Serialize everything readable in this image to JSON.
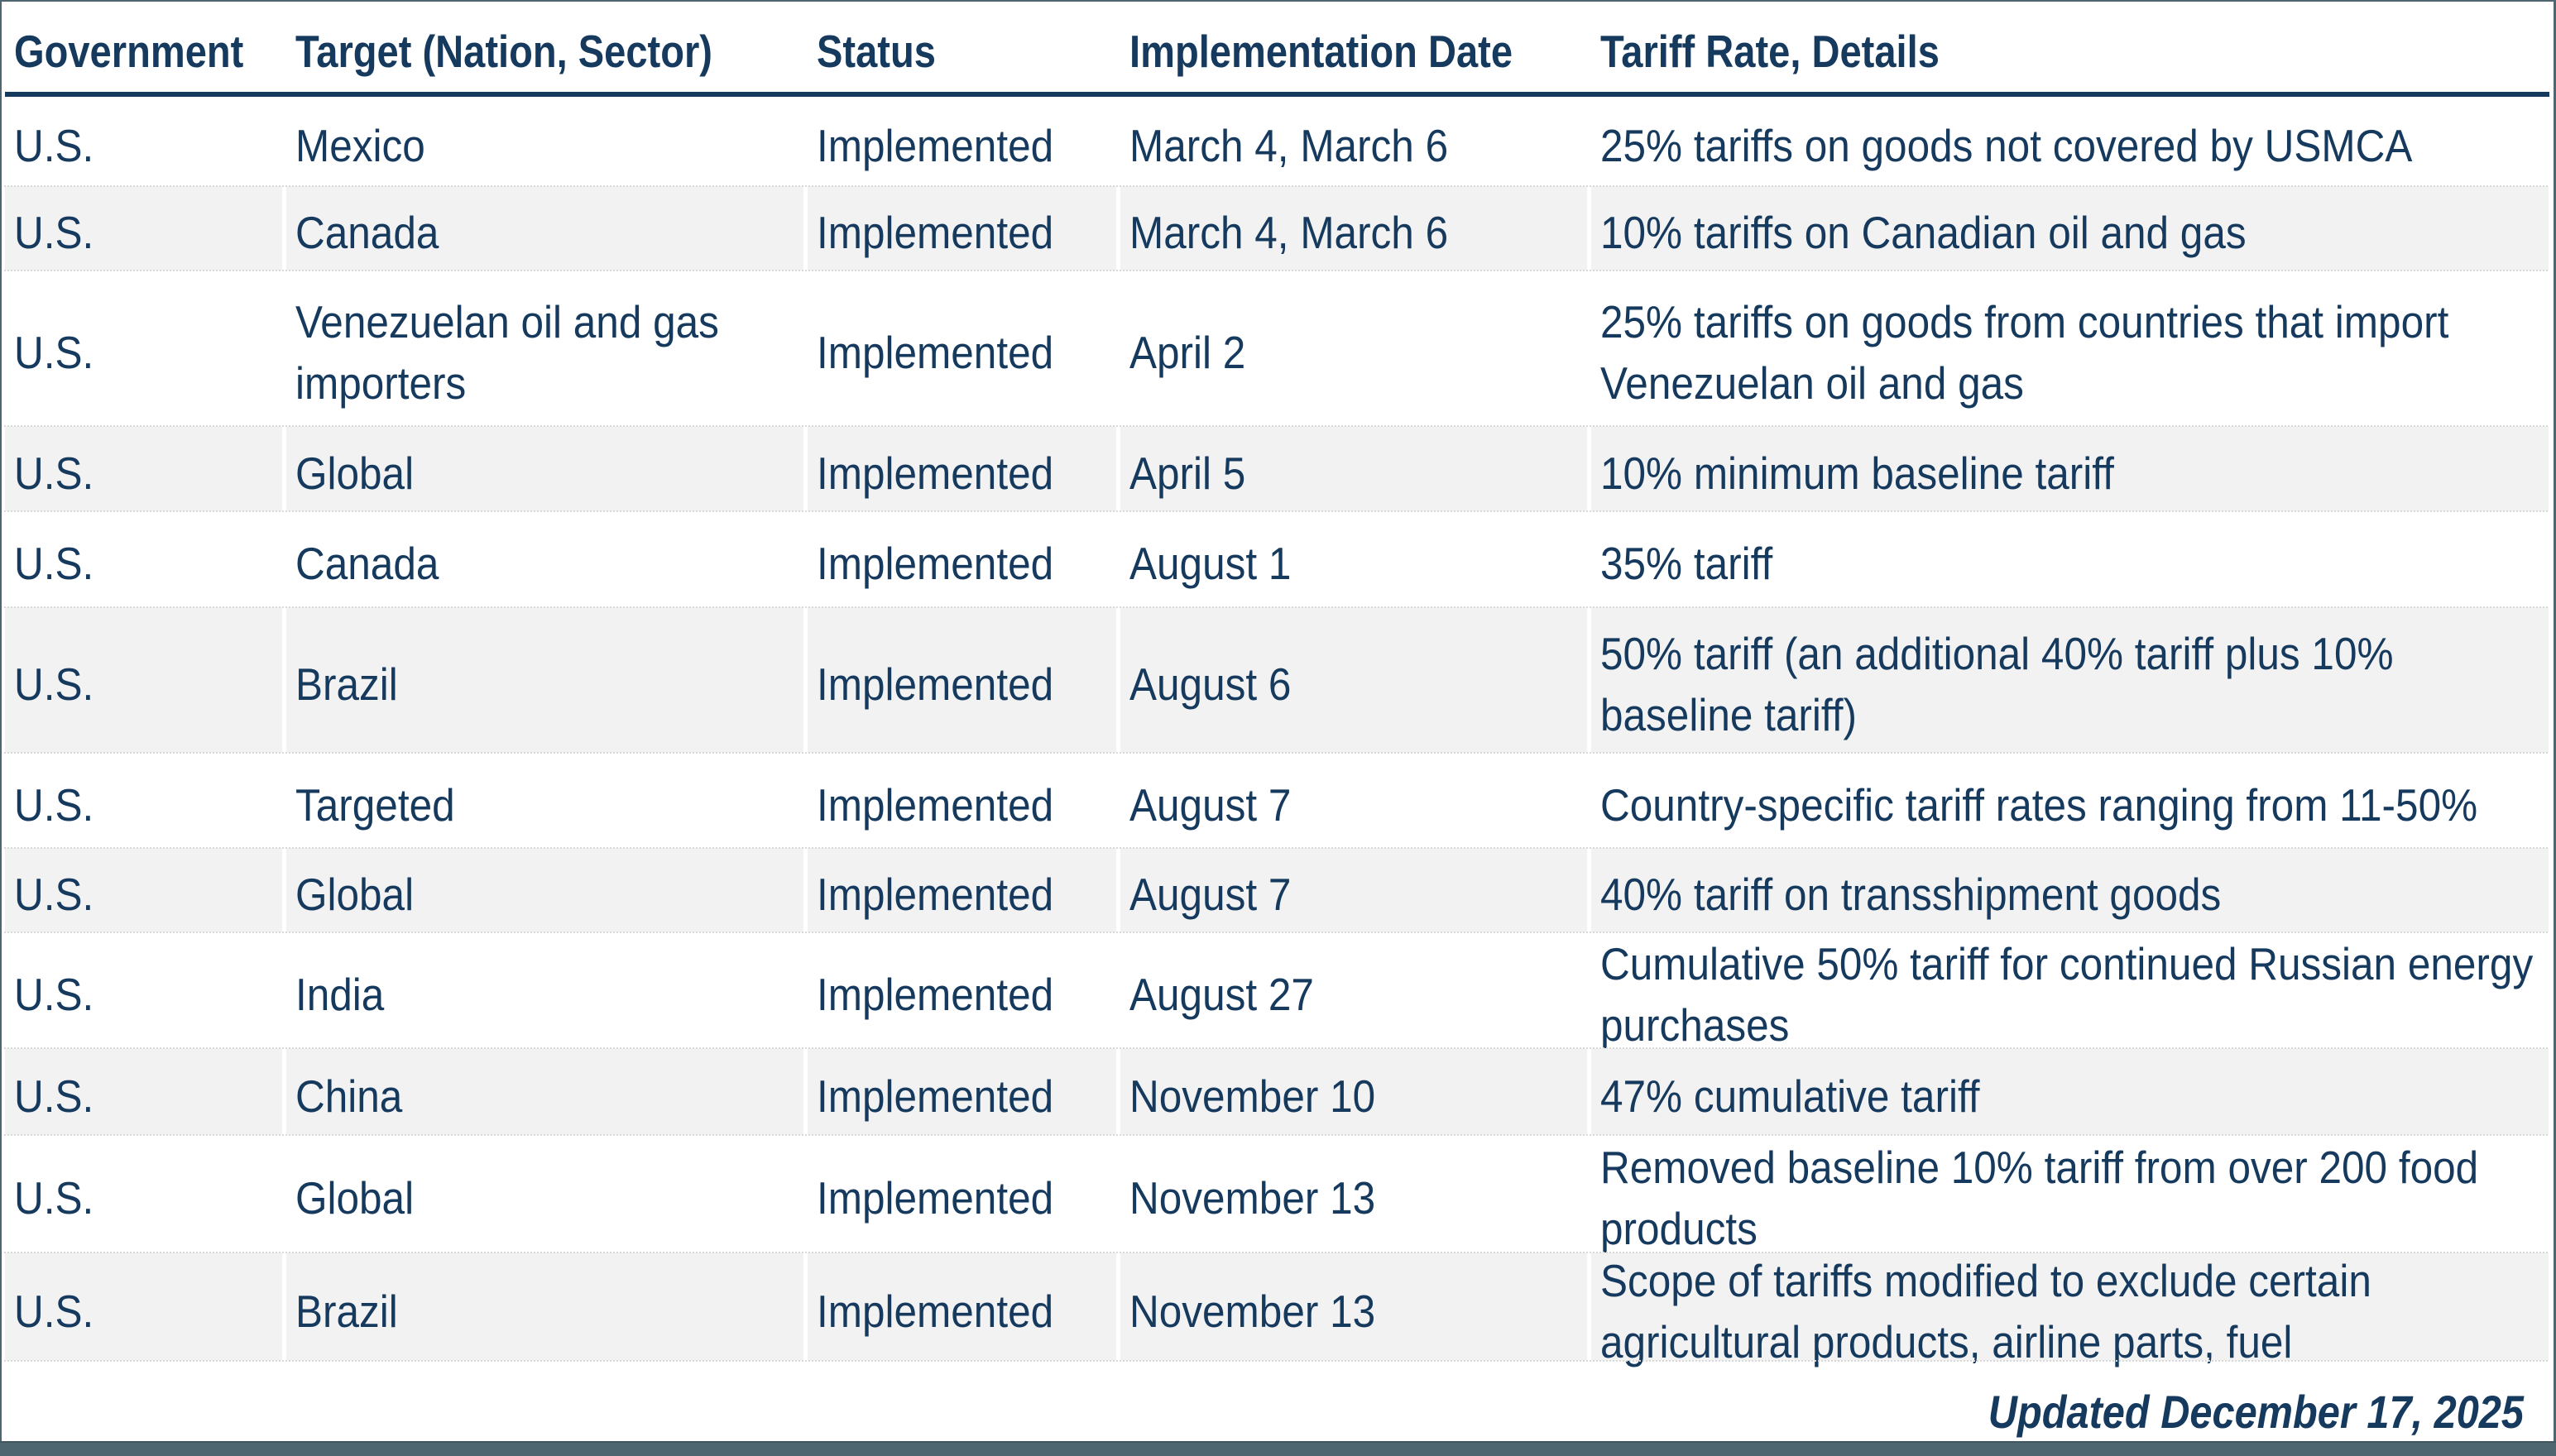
{
  "colors": {
    "navy_text": "#16395e",
    "row_stripe_gray": "#f2f2f2",
    "frame_slate": "#4d6670",
    "frame_slate_dark": "#41575f",
    "row_divider_dot": "#d9d9d9"
  },
  "table": {
    "columns": [
      "Government",
      "Target (Nation, Sector)",
      "Status",
      "Implementation Date",
      "Tariff Rate, Details"
    ],
    "rows": [
      {
        "government": "U.S.",
        "target": "Mexico",
        "status": "Implemented",
        "date": "March 4, March 6",
        "details": "25% tariffs on goods not covered by USMCA"
      },
      {
        "government": "U.S.",
        "target": "Canada",
        "status": "Implemented",
        "date": "March 4, March 6",
        "details": "10% tariffs on Canadian oil and gas"
      },
      {
        "government": "U.S.",
        "target": "Venezuelan oil and gas\nimporters",
        "status": "Implemented",
        "date": "April 2",
        "details": "25% tariffs on goods from countries that import\nVenezuelan oil and gas"
      },
      {
        "government": "U.S.",
        "target": "Global",
        "status": "Implemented",
        "date": "April 5",
        "details": "10% minimum baseline tariff"
      },
      {
        "government": "U.S.",
        "target": "Canada",
        "status": "Implemented",
        "date": "August 1",
        "details": "35% tariff"
      },
      {
        "government": "U.S.",
        "target": "Brazil",
        "status": "Implemented",
        "date": "August 6",
        "details": "50% tariff (an additional 40% tariff plus 10%\nbaseline tariff)"
      },
      {
        "government": "U.S.",
        "target": "Targeted",
        "status": "Implemented",
        "date": "August 7",
        "details": "Country-specific tariff rates ranging from 11-50%"
      },
      {
        "government": "U.S.",
        "target": "Global",
        "status": "Implemented",
        "date": "August 7",
        "details": "40% tariff on transshipment goods"
      },
      {
        "government": "U.S.",
        "target": "India",
        "status": "Implemented",
        "date": "August 27",
        "details": "Cumulative 50% tariff for continued Russian energy\npurchases"
      },
      {
        "government": "U.S.",
        "target": "China",
        "status": "Implemented",
        "date": "November 10",
        "details": "47% cumulative tariff"
      },
      {
        "government": "U.S.",
        "target": "Global",
        "status": "Implemented",
        "date": "November 13",
        "details": "Removed baseline 10% tariff from over 200 food\nproducts"
      },
      {
        "government": "U.S.",
        "target": "Brazil",
        "status": "Implemented",
        "date": "November 13",
        "details": "Scope of tariffs modified to exclude certain\nagricultural products, airline parts, fuel"
      }
    ]
  },
  "footer": {
    "updated": "Updated December 17, 2025"
  }
}
